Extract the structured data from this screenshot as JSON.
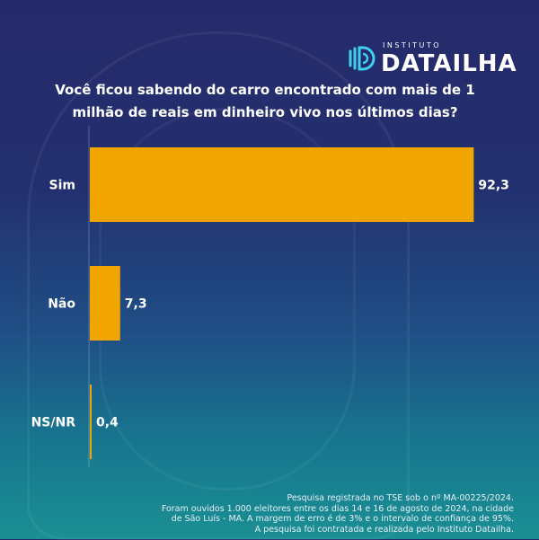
{
  "brand": {
    "small": "INSTITUTO",
    "name": "DATAILHA"
  },
  "question": {
    "line1": "Você ficou sabendo do carro encontrado com mais de 1",
    "line2": "milhão de reais em dinheiro vivo nos últimos dias?"
  },
  "chart_data": {
    "type": "bar",
    "orientation": "horizontal",
    "categories": [
      "Sim",
      "Não",
      "NS/NR"
    ],
    "values": [
      92.3,
      7.3,
      0.4
    ],
    "value_labels": [
      "92,3",
      "7,3",
      "0,4"
    ],
    "xlim": [
      0,
      100
    ],
    "bar_color": "#f0a500",
    "grid": false
  },
  "footer": {
    "line1": "Pesquisa registrada no TSE sob o nº MA-00225/2024.",
    "line2": "Foram ouvidos 1.000 eleitores entre os dias 14 e 16 de agosto de 2024, na cidade",
    "line3": "de São Luís - MA. A margem de erro é de 3% e o intervalo de confiança de 95%.",
    "line4": "A pesquisa foi contratada e realizada pelo Instituto Datailha."
  }
}
